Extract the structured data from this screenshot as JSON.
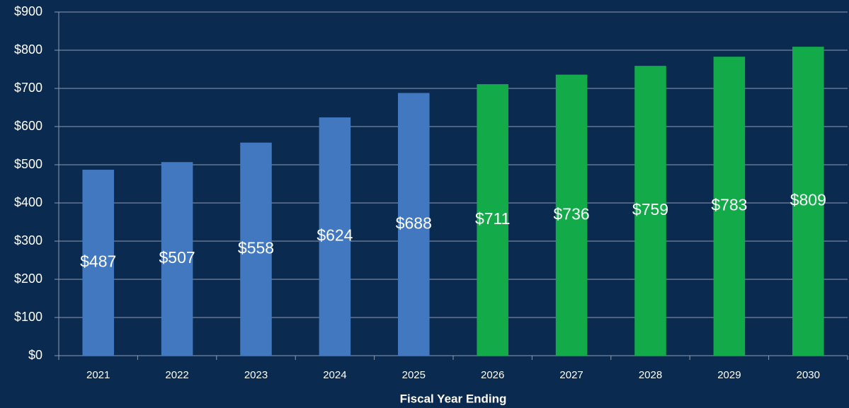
{
  "chart_data": {
    "type": "bar",
    "x_label": "Fiscal Year Ending",
    "categories": [
      "2021",
      "2022",
      "2023",
      "2024",
      "2025",
      "2026",
      "2027",
      "2028",
      "2029",
      "2030"
    ],
    "values": [
      487,
      507,
      558,
      624,
      688,
      711,
      736,
      759,
      783,
      809
    ],
    "value_labels": [
      "$487",
      "$507",
      "$558",
      "$624",
      "$688",
      "$711",
      "$736",
      "$759",
      "$783",
      "$809"
    ],
    "colors": [
      "#4178c0",
      "#4178c0",
      "#4178c0",
      "#4178c0",
      "#4178c0",
      "#13aa4a",
      "#13aa4a",
      "#13aa4a",
      "#13aa4a",
      "#13aa4a"
    ],
    "ylim": [
      0,
      900
    ],
    "yticks": [
      {
        "value": 0,
        "label": "$0"
      },
      {
        "value": 100,
        "label": "$100"
      },
      {
        "value": 200,
        "label": "$200"
      },
      {
        "value": 300,
        "label": "$300"
      },
      {
        "value": 400,
        "label": "$400"
      },
      {
        "value": 500,
        "label": "$500"
      },
      {
        "value": 600,
        "label": "$600"
      },
      {
        "value": 700,
        "label": "$700"
      },
      {
        "value": 800,
        "label": "$800"
      },
      {
        "value": 900,
        "label": "$900"
      }
    ],
    "grid": true
  }
}
